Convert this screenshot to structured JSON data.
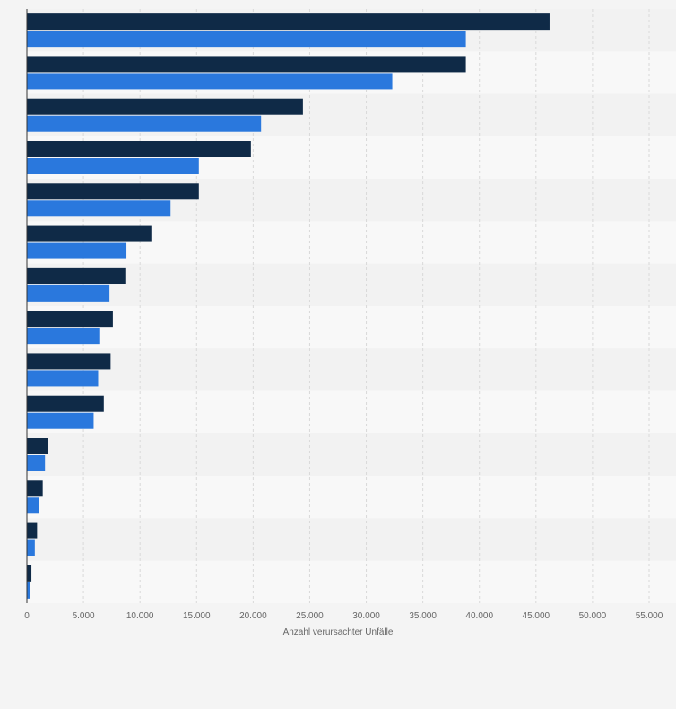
{
  "chart_data": {
    "type": "bar",
    "orientation": "horizontal",
    "title": "",
    "xlabel": "Anzahl verursachter Unfälle",
    "ylabel": "",
    "xlim": [
      0,
      55000
    ],
    "x_ticks": [
      0,
      5000,
      10000,
      15000,
      20000,
      25000,
      30000,
      35000,
      40000,
      45000,
      50000,
      55000
    ],
    "x_tick_labels": [
      "0",
      "5.000",
      "10.000",
      "15.000",
      "20.000",
      "25.000",
      "30.000",
      "35.000",
      "40.000",
      "45.000",
      "50.000",
      "55.000"
    ],
    "grid": true,
    "legend": "none",
    "categories": [
      "",
      "",
      "",
      "",
      "",
      "",
      "",
      "",
      "",
      "",
      "",
      "",
      "",
      ""
    ],
    "series": [
      {
        "color": "#0f2a47",
        "values": [
          46200,
          38800,
          24400,
          19800,
          15200,
          11000,
          8700,
          7600,
          7400,
          6800,
          1900,
          1400,
          900,
          400
        ]
      },
      {
        "color": "#2a78dd",
        "values": [
          38800,
          32300,
          20700,
          15200,
          12700,
          8800,
          7300,
          6400,
          6300,
          5900,
          1600,
          1100,
          700,
          300
        ]
      }
    ]
  }
}
